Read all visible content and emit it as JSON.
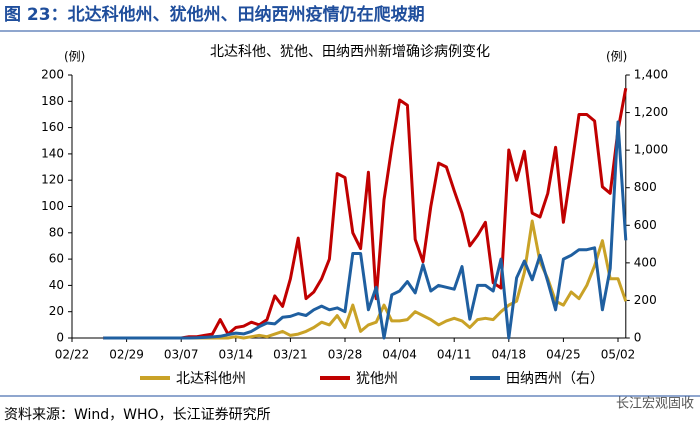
{
  "chart_data": {
    "type": "line",
    "figure_title": "图 23：北达科他州、犹他州、田纳西州疫情仍在爬坡期",
    "title": "北达科他、犹他、田纳西州新增确诊病例变化",
    "y_label": "(例)",
    "y2_label": "(例)",
    "source": "资料来源：Wind，WHO，长江证券研究所",
    "watermark": "长江宏观固收",
    "categories": [
      "02/22",
      null,
      null,
      null,
      null,
      null,
      null,
      "02/29",
      null,
      null,
      null,
      null,
      null,
      null,
      "03/07",
      null,
      null,
      null,
      null,
      null,
      null,
      "03/14",
      null,
      null,
      null,
      null,
      null,
      null,
      "03/21",
      null,
      null,
      null,
      null,
      null,
      null,
      "03/28",
      null,
      null,
      null,
      null,
      null,
      null,
      "04/04",
      null,
      null,
      null,
      null,
      null,
      null,
      "04/11",
      null,
      null,
      null,
      null,
      null,
      null,
      "04/18",
      null,
      null,
      null,
      null,
      null,
      null,
      "04/25",
      null,
      null,
      null,
      null,
      null,
      null,
      "05/02",
      null
    ],
    "series": [
      {
        "name": "北达科他州",
        "color": "#c9a227",
        "values": [
          null,
          null,
          null,
          null,
          0,
          0,
          0,
          0,
          0,
          0,
          0,
          0,
          0,
          0,
          0,
          0,
          0,
          0,
          0,
          0,
          0,
          1,
          0,
          1,
          2,
          1,
          3,
          5,
          2,
          3,
          5,
          8,
          12,
          10,
          17,
          8,
          25,
          5,
          10,
          12,
          25,
          13,
          13,
          14,
          20,
          17,
          14,
          10,
          13,
          15,
          13,
          8,
          14,
          15,
          14,
          20,
          25,
          28,
          50,
          89,
          58,
          45,
          28,
          25,
          35,
          30,
          40,
          55,
          74,
          45,
          45,
          28
        ]
      },
      {
        "name": "犹他州",
        "color": "#c00000",
        "values": [
          null,
          null,
          null,
          null,
          0,
          0,
          0,
          0,
          0,
          0,
          0,
          0,
          0,
          0,
          0,
          1,
          1,
          2,
          3,
          14,
          3,
          8,
          9,
          12,
          10,
          14,
          32,
          24,
          45,
          76,
          30,
          35,
          45,
          60,
          125,
          122,
          80,
          68,
          126,
          30,
          105,
          145,
          181,
          177,
          75,
          58,
          100,
          133,
          130,
          112,
          95,
          70,
          78,
          88,
          42,
          38,
          143,
          120,
          142,
          95,
          92,
          110,
          145,
          88,
          128,
          170,
          170,
          165,
          115,
          110,
          158,
          190
        ]
      },
      {
        "name": "田纳西州（右）",
        "color": "#1f5fa0",
        "axis": "y2",
        "values": [
          null,
          null,
          null,
          null,
          0,
          0,
          0,
          0,
          0,
          0,
          0,
          0,
          0,
          0,
          0,
          0,
          1,
          3,
          6,
          9,
          18,
          26,
          22,
          35,
          60,
          80,
          75,
          110,
          115,
          130,
          120,
          150,
          170,
          150,
          160,
          140,
          450,
          450,
          150,
          270,
          0,
          230,
          250,
          300,
          240,
          390,
          250,
          280,
          270,
          260,
          380,
          100,
          280,
          280,
          250,
          420,
          0,
          320,
          410,
          310,
          440,
          300,
          150,
          420,
          440,
          470,
          470,
          480,
          150,
          370,
          1150,
          520
        ]
      }
    ],
    "ylim": [
      0,
      200
    ],
    "yticks": [
      0,
      20,
      40,
      60,
      80,
      100,
      120,
      140,
      160,
      180,
      200
    ],
    "y2lim": [
      0,
      1400
    ],
    "y2ticks": [
      0,
      200,
      400,
      600,
      800,
      {
        "value": 1000,
        "label": "1,000"
      },
      {
        "value": 1200,
        "label": "1,200"
      },
      {
        "value": 1400,
        "label": "1,400"
      }
    ],
    "legend": "bottom"
  }
}
